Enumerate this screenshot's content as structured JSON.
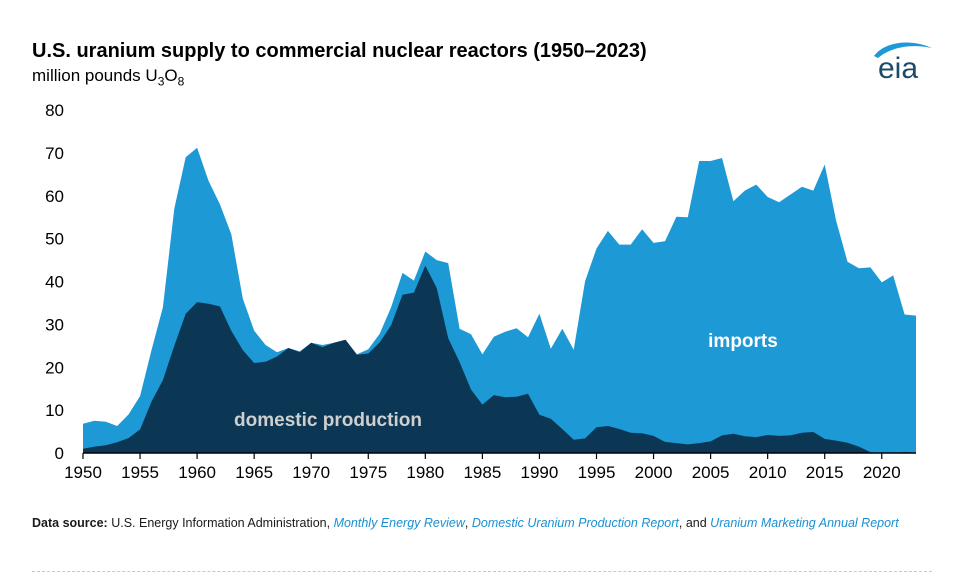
{
  "header": {
    "title": "U.S. uranium supply to commercial nuclear reactors (1950–2023)",
    "subtitle_prefix": "million pounds U",
    "subtitle_sub1": "3",
    "subtitle_mid": "O",
    "subtitle_sub2": "8"
  },
  "logo": {
    "text": "eia"
  },
  "colors": {
    "imports": "#1d99d6",
    "domestic": "#0b3754",
    "axis": "#000000",
    "label_on_light": "#ffffff",
    "label_on_dark": "#cfcfcf"
  },
  "chart_data": {
    "type": "area",
    "stacked": true,
    "title": "U.S. uranium supply to commercial nuclear reactors (1950–2023)",
    "ylabel": "million pounds U3O8",
    "xlabel": "",
    "ylim": [
      0,
      80
    ],
    "xlim": [
      1950,
      2023
    ],
    "yticks": [
      0,
      10,
      20,
      30,
      40,
      50,
      60,
      70,
      80
    ],
    "xticks": [
      1950,
      1955,
      1960,
      1965,
      1970,
      1975,
      1980,
      1985,
      1990,
      1995,
      2000,
      2005,
      2010,
      2015,
      2020
    ],
    "x": [
      1950,
      1951,
      1952,
      1953,
      1954,
      1955,
      1956,
      1957,
      1958,
      1959,
      1960,
      1961,
      1962,
      1963,
      1964,
      1965,
      1966,
      1967,
      1968,
      1969,
      1970,
      1971,
      1972,
      1973,
      1974,
      1975,
      1976,
      1977,
      1978,
      1979,
      1980,
      1981,
      1982,
      1983,
      1984,
      1985,
      1986,
      1987,
      1988,
      1989,
      1990,
      1991,
      1992,
      1993,
      1994,
      1995,
      1996,
      1997,
      1998,
      1999,
      2000,
      2001,
      2002,
      2003,
      2004,
      2005,
      2006,
      2007,
      2008,
      2009,
      2010,
      2011,
      2012,
      2013,
      2014,
      2015,
      2016,
      2017,
      2018,
      2019,
      2020,
      2021,
      2022,
      2023
    ],
    "series": [
      {
        "name": "domestic production",
        "values": [
          1.0,
          1.5,
          1.8,
          2.5,
          3.5,
          5.5,
          12,
          17,
          25,
          32.5,
          35.2,
          34.8,
          34.2,
          28.5,
          24,
          21,
          21.3,
          22.5,
          24.5,
          23.5,
          25.7,
          24.7,
          25.7,
          26.4,
          22.9,
          23.2,
          25.8,
          29.8,
          36.9,
          37.4,
          43.7,
          38.5,
          26.8,
          21.2,
          14.8,
          11.3,
          13.5,
          13.0,
          13.1,
          13.8,
          8.9,
          8.0,
          5.6,
          3.1,
          3.4,
          6.0,
          6.3,
          5.6,
          4.7,
          4.6,
          4.0,
          2.6,
          2.3,
          2.0,
          2.3,
          2.7,
          4.1,
          4.5,
          3.9,
          3.7,
          4.2,
          4.0,
          4.1,
          4.7,
          4.9,
          3.3,
          2.9,
          2.4,
          1.5,
          0.2,
          0.0,
          0.02,
          0.2,
          0.05
        ]
      },
      {
        "name": "imports",
        "values": [
          5.8,
          6.0,
          5.5,
          3.8,
          5.5,
          7.8,
          12,
          17,
          32,
          36.5,
          36.0,
          28.7,
          23.8,
          22.5,
          12,
          7.5,
          3.9,
          1.0,
          0.0,
          0.2,
          0.0,
          0.5,
          0.0,
          0.0,
          0.1,
          1.0,
          2.0,
          4.2,
          5.1,
          2.8,
          3.3,
          6.5,
          17.5,
          7.8,
          12.9,
          11.7,
          13.6,
          15.3,
          16.0,
          13.2,
          23.6,
          16.3,
          23.4,
          21.0,
          36.7,
          41.7,
          45.5,
          43.0,
          43.9,
          47.6,
          45.0,
          46.8,
          52.8,
          53.0,
          65.8,
          65.4,
          64.7,
          54.2,
          57.3,
          58.9,
          55.5,
          54.5,
          56.2,
          57.4,
          56.3,
          64.0,
          51.3,
          42.2,
          41.6,
          43.1,
          39.8,
          41.4,
          32.1,
          32.0
        ]
      }
    ],
    "annotations": [
      "imports",
      "domestic production"
    ],
    "legend": "none (inline labels)"
  },
  "footer": {
    "label": "Data source:",
    "prefix": "U.S. Energy Information Administration,",
    "ref1": "Monthly Energy Review",
    "sep1": ",",
    "ref2": "Domestic Uranium Production Report",
    "sep2": ", and",
    "ref3": "Uranium Marketing Annual Report"
  }
}
